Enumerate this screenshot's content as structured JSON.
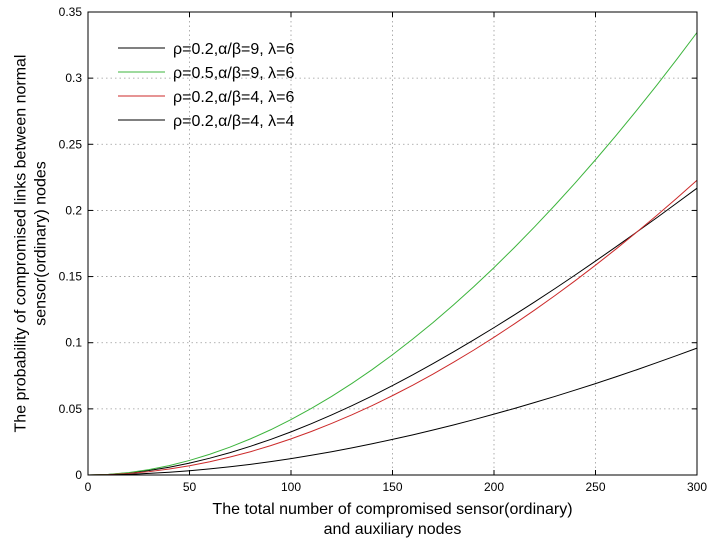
{
  "chart_data": {
    "type": "line",
    "xlabel_lines": [
      "The total number of compromised sensor(ordinary)",
      "and auxiliary nodes"
    ],
    "ylabel_lines": [
      "The probability of compromised links between normal",
      "sensor(ordinary) nodes"
    ],
    "xlim": [
      0,
      300
    ],
    "ylim": [
      0,
      0.35
    ],
    "xticks": [
      0,
      50,
      100,
      150,
      200,
      250,
      300
    ],
    "xtick_labels": [
      "0",
      "50",
      "100",
      "150",
      "200",
      "250",
      "300"
    ],
    "yticks": [
      0,
      0.05,
      0.1,
      0.15,
      0.2,
      0.25,
      0.3,
      0.35
    ],
    "ytick_labels": [
      "0",
      "0.05",
      "0.1",
      "0.15",
      "0.2",
      "0.25",
      "0.3",
      "0.35"
    ],
    "grid": true,
    "grid_style": "dotted",
    "legend_position": "top-left",
    "x": [
      0,
      10,
      20,
      30,
      40,
      50,
      60,
      70,
      80,
      90,
      100,
      110,
      120,
      130,
      140,
      150,
      160,
      170,
      180,
      190,
      200,
      210,
      220,
      230,
      240,
      250,
      260,
      270,
      280,
      290,
      300
    ],
    "series": [
      {
        "name": "ρ=0.2,α/β=9, λ=6",
        "color": "#000000",
        "values": [
          0,
          0.0004,
          0.0016,
          0.0034,
          0.0059,
          0.009,
          0.0127,
          0.0169,
          0.0217,
          0.0269,
          0.0326,
          0.0388,
          0.0454,
          0.0524,
          0.0598,
          0.0676,
          0.0757,
          0.0842,
          0.093,
          0.1021,
          0.1114,
          0.121,
          0.1308,
          0.1409,
          0.1512,
          0.1617,
          0.1724,
          0.1833,
          0.1943,
          0.2055,
          0.2168
        ]
      },
      {
        "name": "ρ=0.5,α/β=9, λ=6",
        "color": "#3cb43c",
        "values": [
          0,
          0.0005,
          0.0018,
          0.0041,
          0.0071,
          0.011,
          0.0157,
          0.0211,
          0.0273,
          0.0342,
          0.0419,
          0.0503,
          0.0594,
          0.0692,
          0.0797,
          0.0909,
          0.1028,
          0.1153,
          0.1285,
          0.1423,
          0.1568,
          0.1719,
          0.1876,
          0.2039,
          0.2208,
          0.2383,
          0.2564,
          0.2751,
          0.2943,
          0.3141,
          0.3345
        ]
      },
      {
        "name": "ρ=0.2,α/β=4, λ=6",
        "color": "#cc2a2a",
        "values": [
          0,
          0.0003,
          0.0011,
          0.0025,
          0.0045,
          0.007,
          0.01,
          0.0136,
          0.0176,
          0.0222,
          0.0273,
          0.0329,
          0.039,
          0.0455,
          0.0525,
          0.06,
          0.0679,
          0.0763,
          0.0852,
          0.0944,
          0.1041,
          0.1142,
          0.1247,
          0.1356,
          0.1469,
          0.1586,
          0.1707,
          0.1832,
          0.196,
          0.2092,
          0.2228
        ]
      },
      {
        "name": "ρ=0.2,α/β=4, λ=4",
        "color": "#000000",
        "values": [
          0,
          0.0001,
          0.0005,
          0.0012,
          0.0021,
          0.0032,
          0.0046,
          0.0062,
          0.008,
          0.0101,
          0.0124,
          0.0149,
          0.0176,
          0.0205,
          0.0236,
          0.0269,
          0.0303,
          0.034,
          0.0378,
          0.0418,
          0.046,
          0.0503,
          0.0548,
          0.0594,
          0.0642,
          0.0691,
          0.0742,
          0.0794,
          0.0848,
          0.0903,
          0.0959
        ]
      }
    ]
  }
}
